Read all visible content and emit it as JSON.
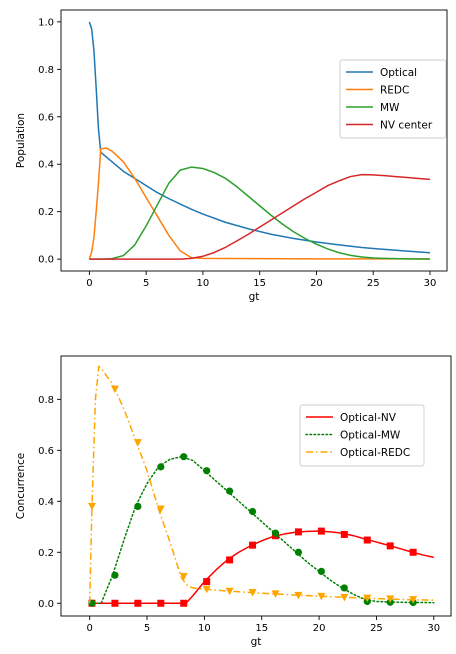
{
  "chart_data": [
    {
      "type": "line",
      "title": "",
      "xlabel": "gt",
      "ylabel": "Population",
      "xlim": [
        -2.5,
        31.5
      ],
      "ylim": [
        -0.05,
        1.05
      ],
      "xticks": [
        "0",
        "5",
        "10",
        "15",
        "20",
        "25",
        "30"
      ],
      "yticks": [
        "0.0",
        "0.2",
        "0.4",
        "0.6",
        "0.8",
        "1.0"
      ],
      "legend_position": "center-right",
      "series": [
        {
          "name": "Optical",
          "color": "#1f77b4",
          "x": [
            0,
            0.2,
            0.4,
            0.6,
            0.8,
            1,
            2,
            3,
            4,
            5,
            6,
            7,
            8,
            9,
            10,
            12,
            14,
            16,
            18,
            20,
            22,
            24,
            26,
            28,
            30
          ],
          "y": [
            1.0,
            0.97,
            0.88,
            0.72,
            0.55,
            0.45,
            0.41,
            0.37,
            0.34,
            0.31,
            0.28,
            0.255,
            0.232,
            0.21,
            0.19,
            0.155,
            0.128,
            0.105,
            0.087,
            0.072,
            0.06,
            0.049,
            0.041,
            0.034,
            0.027
          ]
        },
        {
          "name": "REDC",
          "color": "#ff7f0e",
          "x": [
            0,
            0.2,
            0.4,
            0.6,
            0.8,
            1,
            1.5,
            2,
            3,
            4,
            5,
            6,
            7,
            8,
            9,
            10,
            15,
            20,
            25,
            30
          ],
          "y": [
            0.0,
            0.03,
            0.09,
            0.2,
            0.32,
            0.465,
            0.468,
            0.455,
            0.41,
            0.34,
            0.26,
            0.18,
            0.1,
            0.035,
            0.006,
            0.003,
            0.002,
            0.001,
            0.001,
            0.001
          ]
        },
        {
          "name": "MW",
          "color": "#2ca02c",
          "x": [
            0,
            1,
            2,
            3,
            4,
            5,
            6,
            7,
            8,
            9,
            10,
            11,
            12,
            13,
            14,
            15,
            16,
            17,
            18,
            19,
            20,
            21,
            22,
            23,
            24,
            25,
            26,
            27,
            28,
            30
          ],
          "y": [
            0.0,
            0.0,
            0.002,
            0.015,
            0.06,
            0.14,
            0.23,
            0.32,
            0.375,
            0.388,
            0.382,
            0.365,
            0.34,
            0.305,
            0.265,
            0.225,
            0.185,
            0.148,
            0.115,
            0.087,
            0.063,
            0.043,
            0.027,
            0.016,
            0.009,
            0.005,
            0.003,
            0.002,
            0.001,
            0.0
          ]
        },
        {
          "name": "NV center",
          "color": "#d62728",
          "x": [
            0,
            5,
            8,
            9,
            10,
            11,
            12,
            13,
            14,
            15,
            16,
            17,
            18,
            19,
            20,
            21,
            22,
            23,
            24,
            25,
            26,
            27,
            28,
            29,
            30
          ],
          "y": [
            0.0,
            0.0,
            0.0,
            0.003,
            0.012,
            0.028,
            0.05,
            0.077,
            0.105,
            0.135,
            0.165,
            0.195,
            0.225,
            0.255,
            0.282,
            0.31,
            0.33,
            0.348,
            0.356,
            0.355,
            0.352,
            0.348,
            0.344,
            0.34,
            0.336
          ]
        }
      ]
    },
    {
      "type": "line",
      "title": "",
      "xlabel": "gt",
      "ylabel": "Concurrence",
      "xlim": [
        -2.5,
        31.5
      ],
      "ylim": [
        -0.05,
        0.97
      ],
      "xticks": [
        "0",
        "5",
        "10",
        "15",
        "20",
        "25",
        "30"
      ],
      "yticks": [
        "0.0",
        "0.2",
        "0.4",
        "0.6",
        "0.8"
      ],
      "legend_position": "upper-right",
      "series": [
        {
          "name": "Optical-NV",
          "color": "#ff0000",
          "style": "solid",
          "marker": "square",
          "x": [
            0,
            2,
            4,
            6,
            8,
            8.5,
            9,
            10,
            11,
            12,
            13,
            14,
            15,
            16,
            17,
            18,
            19,
            20,
            21,
            22,
            23,
            24,
            25,
            26,
            27,
            28,
            29,
            30
          ],
          "y": [
            0.0,
            0.0,
            0.0,
            0.0,
            0.0,
            0.005,
            0.03,
            0.085,
            0.13,
            0.17,
            0.2,
            0.225,
            0.245,
            0.262,
            0.272,
            0.279,
            0.282,
            0.283,
            0.28,
            0.275,
            0.265,
            0.252,
            0.24,
            0.228,
            0.215,
            0.202,
            0.19,
            0.18
          ],
          "marker_x": [
            0.2,
            2.2,
            4.2,
            6.2,
            8.2,
            10.2,
            12.2,
            14.2,
            16.2,
            18.2,
            20.2,
            22.2,
            24.2,
            26.2,
            28.2
          ],
          "marker_y": [
            0.0,
            0.0,
            0.0,
            0.0,
            0.0,
            0.085,
            0.17,
            0.228,
            0.265,
            0.28,
            0.283,
            0.27,
            0.248,
            0.225,
            0.2
          ]
        },
        {
          "name": "Optical-MW",
          "color": "#008000",
          "style": "dotted",
          "marker": "circle",
          "x": [
            0,
            1,
            2,
            3,
            4,
            5,
            6,
            7,
            8,
            9,
            10,
            11,
            12,
            13,
            14,
            15,
            16,
            17,
            18,
            19,
            20,
            21,
            22,
            23,
            24,
            25,
            26,
            27,
            28,
            29,
            30
          ],
          "y": [
            0.0,
            0.0,
            0.11,
            0.25,
            0.38,
            0.47,
            0.535,
            0.565,
            0.575,
            0.56,
            0.52,
            0.48,
            0.44,
            0.4,
            0.36,
            0.32,
            0.28,
            0.24,
            0.2,
            0.16,
            0.125,
            0.09,
            0.06,
            0.035,
            0.015,
            0.007,
            0.005,
            0.004,
            0.003,
            0.003,
            0.002
          ],
          "marker_x": [
            0.2,
            2.2,
            4.2,
            6.2,
            8.2,
            10.2,
            12.2,
            14.2,
            16.2,
            18.2,
            20.2,
            22.2,
            24.2,
            26.2,
            28.2
          ],
          "marker_y": [
            0.0,
            0.11,
            0.38,
            0.535,
            0.575,
            0.52,
            0.44,
            0.36,
            0.275,
            0.2,
            0.125,
            0.06,
            0.007,
            0.004,
            0.003
          ]
        },
        {
          "name": "Optical-REDC",
          "color": "#ffa500",
          "style": "dashdot",
          "marker": "triangle-down",
          "x": [
            0,
            0.2,
            0.5,
            0.8,
            1,
            2,
            3,
            4,
            5,
            6,
            7,
            8,
            8.5,
            9,
            10,
            12,
            14,
            16,
            18,
            20,
            22,
            24,
            26,
            28,
            30
          ],
          "y": [
            0.0,
            0.38,
            0.8,
            0.93,
            0.92,
            0.86,
            0.76,
            0.64,
            0.52,
            0.37,
            0.24,
            0.1,
            0.07,
            0.06,
            0.055,
            0.048,
            0.042,
            0.037,
            0.032,
            0.028,
            0.024,
            0.02,
            0.017,
            0.014,
            0.012
          ],
          "marker_x": [
            0.2,
            2.2,
            4.2,
            6.2,
            8.2,
            10.2,
            12.2,
            14.2,
            16.2,
            18.2,
            20.2,
            22.2,
            24.2,
            26.2,
            28.2
          ],
          "marker_y": [
            0.38,
            0.84,
            0.63,
            0.37,
            0.105,
            0.055,
            0.047,
            0.042,
            0.037,
            0.031,
            0.027,
            0.023,
            0.02,
            0.017,
            0.014
          ]
        }
      ]
    }
  ]
}
